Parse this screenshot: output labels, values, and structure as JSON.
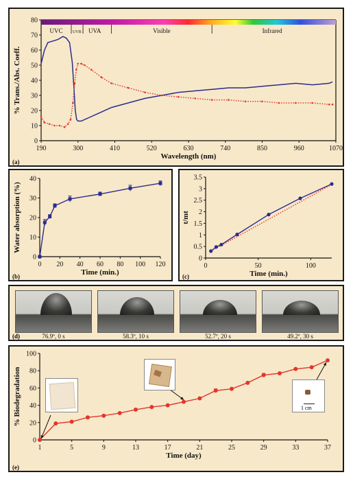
{
  "chart_data": [
    {
      "panel": "(a)",
      "type": "line",
      "xlabel": "Wavelength (nm)",
      "ylabel": "% Trans./Abs. Coeff.",
      "xlim": [
        190,
        1070
      ],
      "ylim": [
        0,
        80
      ],
      "xticks": [
        190,
        300,
        410,
        520,
        630,
        740,
        850,
        960,
        1070
      ],
      "yticks": [
        0,
        10,
        20,
        30,
        40,
        50,
        60,
        70,
        80
      ],
      "spectrum_labels": [
        "UVC",
        "UVB",
        "UVA",
        "Visible",
        "Infrared"
      ],
      "series": [
        {
          "color": "#2b2b8f",
          "style": "solid",
          "x": [
            190,
            200,
            210,
            225,
            240,
            255,
            265,
            275,
            283,
            288,
            292,
            296,
            300,
            310,
            330,
            360,
            400,
            450,
            500,
            550,
            600,
            650,
            700,
            750,
            800,
            850,
            900,
            950,
            1000,
            1050,
            1060
          ],
          "y": [
            51,
            60,
            65,
            66,
            67,
            69,
            68,
            65,
            52,
            35,
            20,
            14,
            13,
            13,
            15,
            18,
            22,
            25,
            28,
            30,
            32,
            33,
            34,
            35,
            35,
            36,
            37,
            38,
            37,
            38,
            39
          ]
        },
        {
          "color": "#e0362c",
          "style": "dotted",
          "x": [
            190,
            200,
            215,
            230,
            245,
            260,
            270,
            278,
            285,
            290,
            295,
            300,
            310,
            320,
            340,
            370,
            400,
            450,
            500,
            550,
            600,
            650,
            700,
            750,
            800,
            850,
            900,
            950,
            1000,
            1050,
            1060
          ],
          "y": [
            16,
            12,
            11,
            10,
            10,
            9,
            11,
            14,
            25,
            38,
            47,
            51,
            51,
            50,
            47,
            42,
            38,
            35,
            32,
            30,
            29,
            28,
            27,
            27,
            26,
            26,
            25,
            25,
            25,
            24,
            24
          ]
        }
      ]
    },
    {
      "panel": "(b)",
      "type": "line",
      "xlabel": "Time (min.)",
      "ylabel": "Water absorption (%)",
      "xlim": [
        0,
        120
      ],
      "ylim": [
        0,
        40
      ],
      "xticks": [
        0,
        20,
        40,
        60,
        80,
        100,
        120
      ],
      "yticks": [
        0,
        10,
        20,
        30,
        40
      ],
      "series": [
        {
          "color": "#2b2b8f",
          "x": [
            0,
            5,
            10,
            15,
            30,
            60,
            90,
            120
          ],
          "y": [
            0,
            17.5,
            20.5,
            26,
            29.5,
            32,
            35,
            37.5
          ],
          "err": [
            0,
            1.5,
            1.0,
            1.0,
            1.5,
            1.0,
            1.5,
            1.2
          ]
        }
      ]
    },
    {
      "panel": "(c)",
      "type": "line",
      "xlabel": "Time (min.)",
      "ylabel": "t/mt",
      "xlim": [
        0,
        120
      ],
      "ylim": [
        0,
        3.5
      ],
      "xticks": [
        0,
        50,
        100
      ],
      "yticks": [
        0,
        0.5,
        1,
        1.5,
        2,
        2.5,
        3,
        3.5
      ],
      "series": [
        {
          "color": "#2b2b8f",
          "style": "solid",
          "x": [
            5,
            10,
            15,
            30,
            60,
            90,
            120
          ],
          "y": [
            0.3,
            0.48,
            0.58,
            1.02,
            1.88,
            2.58,
            3.2
          ]
        },
        {
          "color": "#e0362c",
          "style": "dotted",
          "x": [
            5,
            120
          ],
          "y": [
            0.3,
            3.18
          ]
        }
      ]
    },
    {
      "panel": "(e)",
      "type": "line",
      "xlabel": "Time (day)",
      "ylabel": "% Biodegradation",
      "xlim": [
        1,
        37
      ],
      "ylim": [
        0,
        100
      ],
      "xticks": [
        1,
        5,
        9,
        13,
        17,
        21,
        25,
        29,
        33,
        37
      ],
      "yticks": [
        0,
        20,
        40,
        60,
        80,
        100
      ],
      "series": [
        {
          "color": "#e0362c",
          "x": [
            1,
            3,
            5,
            7,
            9,
            11,
            13,
            15,
            17,
            19,
            21,
            23,
            25,
            27,
            29,
            31,
            33,
            35,
            37
          ],
          "y": [
            0,
            19,
            21,
            26,
            28,
            31,
            35,
            38,
            40,
            44,
            48,
            57,
            59,
            66,
            75,
            77,
            82,
            84,
            92
          ],
          "err": [
            0,
            0,
            0,
            0,
            0,
            0,
            0,
            0,
            0,
            0,
            0,
            2,
            0,
            0,
            2,
            0,
            0,
            0,
            0
          ]
        }
      ]
    }
  ],
  "panels": {
    "a": {
      "tag": "(a)"
    },
    "b": {
      "tag": "(b)"
    },
    "c": {
      "tag": "(c)"
    },
    "d": {
      "tag": "(d)",
      "drops": [
        "76.9º, 0 s",
        "58.3º, 10 s",
        "52.7º, 20 s",
        "49.2º, 30 s"
      ]
    },
    "e": {
      "tag": "(e)",
      "scale_bar": "1 cm"
    }
  }
}
